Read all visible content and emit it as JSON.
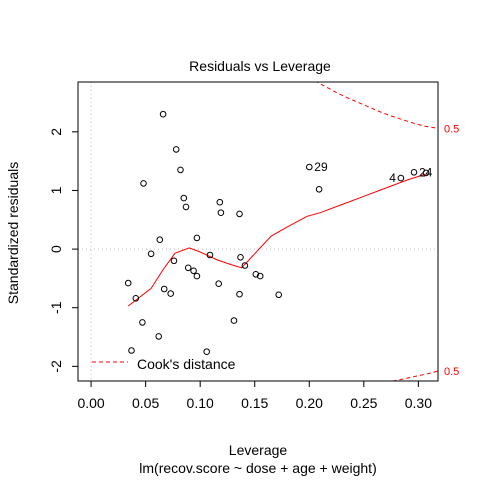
{
  "chart_data": {
    "type": "scatter",
    "title": "Residuals vs Leverage",
    "xlabel": "Leverage",
    "xsublabel": "lm(recov.score ~ dose + age + weight)",
    "ylabel": "Standardized residuals",
    "xlim": [
      -0.012,
      0.318
    ],
    "ylim": [
      -2.25,
      2.85
    ],
    "x_ticks": [
      0.0,
      0.05,
      0.1,
      0.15,
      0.2,
      0.25,
      0.3
    ],
    "x_tick_labels": [
      "0.00",
      "0.05",
      "0.10",
      "0.15",
      "0.20",
      "0.25",
      "0.30"
    ],
    "y_ticks": [
      -2,
      -1,
      0,
      1,
      2
    ],
    "y_tick_labels": [
      "-2",
      "-1",
      "0",
      "1",
      "2"
    ],
    "grid": false,
    "reference_lines": {
      "x": 0,
      "y": 0
    },
    "points": [
      {
        "x": 0.034,
        "y": -0.58
      },
      {
        "x": 0.037,
        "y": -1.73
      },
      {
        "x": 0.041,
        "y": -0.84
      },
      {
        "x": 0.047,
        "y": -1.25
      },
      {
        "x": 0.048,
        "y": 1.12
      },
      {
        "x": 0.055,
        "y": -0.08
      },
      {
        "x": 0.062,
        "y": -1.49
      },
      {
        "x": 0.063,
        "y": 0.16
      },
      {
        "x": 0.066,
        "y": 2.3
      },
      {
        "x": 0.067,
        "y": -0.68
      },
      {
        "x": 0.073,
        "y": -0.76
      },
      {
        "x": 0.076,
        "y": -0.2
      },
      {
        "x": 0.078,
        "y": 1.7
      },
      {
        "x": 0.082,
        "y": 1.35
      },
      {
        "x": 0.085,
        "y": 0.87
      },
      {
        "x": 0.087,
        "y": 0.72
      },
      {
        "x": 0.089,
        "y": -0.32
      },
      {
        "x": 0.094,
        "y": -0.37
      },
      {
        "x": 0.097,
        "y": 0.19
      },
      {
        "x": 0.097,
        "y": -0.46
      },
      {
        "x": 0.106,
        "y": -1.75
      },
      {
        "x": 0.109,
        "y": -0.1
      },
      {
        "x": 0.117,
        "y": -0.59
      },
      {
        "x": 0.118,
        "y": 0.8
      },
      {
        "x": 0.119,
        "y": 0.62
      },
      {
        "x": 0.131,
        "y": -1.22
      },
      {
        "x": 0.136,
        "y": 0.6
      },
      {
        "x": 0.136,
        "y": -0.77
      },
      {
        "x": 0.137,
        "y": -0.14
      },
      {
        "x": 0.141,
        "y": -0.28
      },
      {
        "x": 0.151,
        "y": -0.43
      },
      {
        "x": 0.155,
        "y": -0.46
      },
      {
        "x": 0.172,
        "y": -0.78
      },
      {
        "x": 0.2,
        "y": 1.4
      },
      {
        "x": 0.209,
        "y": 1.02
      },
      {
        "x": 0.284,
        "y": 1.21
      },
      {
        "x": 0.296,
        "y": 1.31
      },
      {
        "x": 0.307,
        "y": 1.3
      }
    ],
    "point_labels": [
      {
        "text": "29",
        "x": 0.2,
        "y": 1.4
      },
      {
        "text": "4",
        "x": 0.284,
        "y": 1.21
      },
      {
        "text": "24",
        "x": 0.296,
        "y": 1.31
      }
    ],
    "smoother": {
      "name": "",
      "color": "#ff0000",
      "x": [
        0.034,
        0.055,
        0.066,
        0.077,
        0.09,
        0.1,
        0.115,
        0.129,
        0.138,
        0.148,
        0.165,
        0.18,
        0.198,
        0.21,
        0.23,
        0.25,
        0.27,
        0.29,
        0.307
      ],
      "y": [
        -0.97,
        -0.67,
        -0.35,
        -0.07,
        0.02,
        -0.05,
        -0.18,
        -0.27,
        -0.32,
        -0.12,
        0.22,
        0.38,
        0.56,
        0.62,
        0.76,
        0.9,
        1.04,
        1.18,
        1.28
      ]
    },
    "cooks_distance": {
      "legend_label": "Cook's distance",
      "color": "#ff0000",
      "upper": {
        "label": "0.5",
        "x": [
          0.205,
          0.215,
          0.225,
          0.235,
          0.245,
          0.255,
          0.265,
          0.275,
          0.285,
          0.295,
          0.305,
          0.318
        ],
        "y": [
          2.87,
          2.77,
          2.67,
          2.58,
          2.5,
          2.42,
          2.34,
          2.27,
          2.21,
          2.15,
          2.1,
          2.06
        ]
      },
      "lower": {
        "label": "0.5",
        "x": [
          0.27,
          0.28,
          0.29,
          0.3,
          0.31,
          0.318
        ],
        "y": [
          -2.27,
          -2.24,
          -2.2,
          -2.16,
          -2.12,
          -2.08
        ]
      }
    },
    "colors": {
      "points": "#000000",
      "reference": "#bebebe",
      "axis": "#000000"
    }
  }
}
